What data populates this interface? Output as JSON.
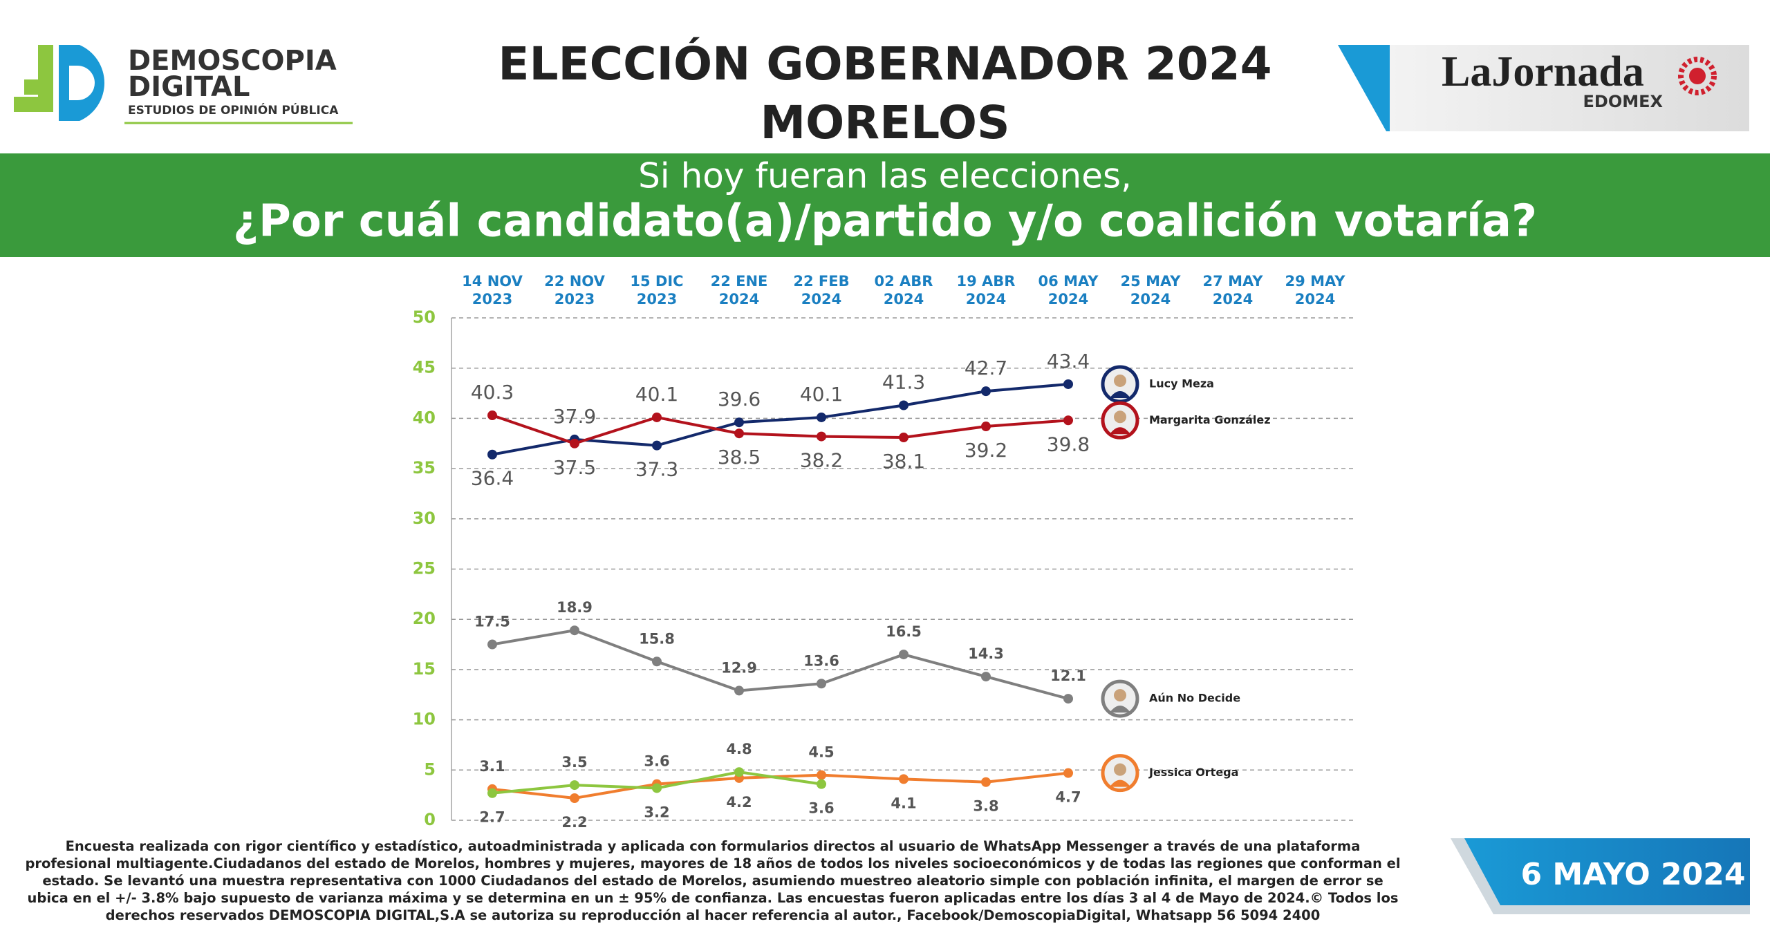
{
  "header": {
    "logo": {
      "name_line1": "DEMOSCOPIA",
      "name_line2": "DIGITAL",
      "tagline": "ESTUDIOS DE OPINIÓN PÚBLICA"
    },
    "title_line1": "ELECCIÓN GOBERNADOR 2024",
    "title_line2": "MORELOS",
    "partner": {
      "name": "LaJornada",
      "region": "EDOMEX"
    }
  },
  "banner": {
    "line1": "Si hoy fueran las elecciones,",
    "line2": "¿Por cuál candidato(a)/partido y/o coalición votaría?"
  },
  "chart_data": {
    "type": "line",
    "categories": [
      "14 NOV\n2023",
      "22 NOV\n2023",
      "15 DIC\n2023",
      "22 ENE\n2024",
      "22 FEB\n2024",
      "02 ABR\n2024",
      "19 ABR\n2024",
      "06 MAY\n2024",
      "25 MAY\n2024",
      "27 MAY\n2024",
      "29 MAY\n2024"
    ],
    "series": [
      {
        "name": "Lucy Meza",
        "color": "#13296b",
        "values": [
          36.4,
          37.9,
          37.3,
          39.6,
          40.1,
          41.3,
          42.7,
          43.4,
          null,
          null,
          null
        ]
      },
      {
        "name": "Margarita González",
        "color": "#b3121c",
        "values": [
          40.3,
          37.5,
          40.1,
          38.5,
          38.2,
          38.1,
          39.2,
          39.8,
          null,
          null,
          null
        ]
      },
      {
        "name": "Aún No Decide",
        "color": "#7f7f7f",
        "values": [
          17.5,
          18.9,
          15.8,
          12.9,
          13.6,
          16.5,
          14.3,
          12.1,
          null,
          null,
          null
        ]
      },
      {
        "name": "Jessica Ortega",
        "color": "#f07d2e",
        "values": [
          3.1,
          2.2,
          3.6,
          4.2,
          4.5,
          4.1,
          3.8,
          4.7,
          null,
          null,
          null
        ]
      },
      {
        "color": "#8dc63f",
        "values": [
          2.7,
          3.5,
          3.2,
          4.8,
          3.6,
          null,
          null,
          null,
          null,
          null,
          null
        ]
      }
    ],
    "ylim": [
      0,
      50
    ],
    "yticks": [
      0,
      5,
      10,
      15,
      20,
      25,
      30,
      35,
      40,
      45,
      50
    ],
    "grid": true
  },
  "footer": {
    "note": "Encuesta realizada con rigor científico y estadístico, autoadministrada y aplicada con formularios directos al usuario de WhatsApp Messenger a través de una plataforma profesional multiagente.Ciudadanos del estado de Morelos, hombres y mujeres, mayores de 18 años de todos los niveles socioeconómicos y de todas las regiones que conforman el estado. Se levantó una muestra representativa con 1000 Ciudadanos del estado de Morelos, asumiendo muestreo aleatorio simple con población infinita, el margen de error se ubica en el +/- 3.8% bajo supuesto de varianza máxima y se determina en un ± 95% de confianza. Las encuestas fueron aplicadas entre los días 3 al 4 de Mayo de 2024.© Todos los derechos reservados DEMOSCOPIA DIGITAL,S.A se autoriza su reproducción al hacer referencia al autor., Facebook/DemoscopiaDigital, Whatsapp 56 5094 2400",
    "date": "6 MAYO 2024"
  }
}
